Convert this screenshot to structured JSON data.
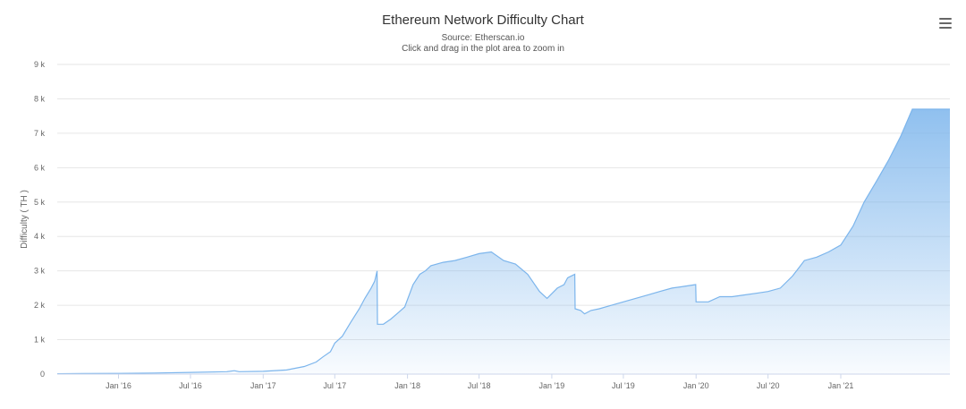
{
  "header": {
    "title": "Ethereum Network Difficulty Chart",
    "source": "Source: Etherscan.io",
    "hint": "Click and drag in the plot area to zoom in"
  },
  "menu": {
    "icon": "hamburger-menu-icon"
  },
  "colors": {
    "series": "#7cb5ec",
    "grid": "#e6e6e6",
    "axis": "#ccd6eb"
  },
  "chart_data": {
    "type": "area",
    "title": "Ethereum Network Difficulty Chart",
    "ylabel": "Difficulty ( TH )",
    "xlabel": "",
    "ylim": [
      0,
      9000
    ],
    "xlim": [
      "2015-07-30",
      "2021-10-04"
    ],
    "y_ticks": [
      {
        "value": 0,
        "label": "0"
      },
      {
        "value": 1000,
        "label": "1 k"
      },
      {
        "value": 2000,
        "label": "2 k"
      },
      {
        "value": 3000,
        "label": "3 k"
      },
      {
        "value": 4000,
        "label": "4 k"
      },
      {
        "value": 5000,
        "label": "5 k"
      },
      {
        "value": 6000,
        "label": "6 k"
      },
      {
        "value": 7000,
        "label": "7 k"
      },
      {
        "value": 8000,
        "label": "8 k"
      },
      {
        "value": 9000,
        "label": "9 k"
      }
    ],
    "x_ticks": [
      {
        "date": "2016-01-01",
        "label": "Jan '16"
      },
      {
        "date": "2016-07-01",
        "label": "Jul '16"
      },
      {
        "date": "2017-01-01",
        "label": "Jan '17"
      },
      {
        "date": "2017-07-01",
        "label": "Jul '17"
      },
      {
        "date": "2018-01-01",
        "label": "Jan '18"
      },
      {
        "date": "2018-07-01",
        "label": "Jul '18"
      },
      {
        "date": "2019-01-01",
        "label": "Jan '19"
      },
      {
        "date": "2019-07-01",
        "label": "Jul '19"
      },
      {
        "date": "2020-01-01",
        "label": "Jan '20"
      },
      {
        "date": "2020-07-01",
        "label": "Jul '20"
      },
      {
        "date": "2021-01-01",
        "label": "Jan '21"
      }
    ],
    "grid": true,
    "legend": "none",
    "series": [
      {
        "x": [
          "2015-07-30",
          "2015-10-01",
          "2016-01-01",
          "2016-04-01",
          "2016-07-01",
          "2016-10-01",
          "2016-10-20",
          "2016-11-01",
          "2017-01-01",
          "2017-03-01",
          "2017-04-15",
          "2017-05-15",
          "2017-06-01",
          "2017-06-20",
          "2017-07-01",
          "2017-07-20",
          "2017-08-10",
          "2017-09-01",
          "2017-09-15",
          "2017-10-01",
          "2017-10-10",
          "2017-10-16",
          "2017-10-17",
          "2017-11-01",
          "2017-11-20",
          "2017-12-10",
          "2017-12-25",
          "2018-01-15",
          "2018-02-01",
          "2018-02-15",
          "2018-03-01",
          "2018-04-01",
          "2018-05-01",
          "2018-06-01",
          "2018-07-01",
          "2018-08-01",
          "2018-09-01",
          "2018-10-01",
          "2018-11-01",
          "2018-12-01",
          "2018-12-20",
          "2019-01-15",
          "2019-02-01",
          "2019-02-10",
          "2019-02-28",
          "2019-03-01",
          "2019-03-15",
          "2019-03-25",
          "2019-04-10",
          "2019-05-01",
          "2019-06-01",
          "2019-07-01",
          "2019-08-01",
          "2019-09-01",
          "2019-10-01",
          "2019-11-01",
          "2019-12-01",
          "2019-12-31",
          "2020-01-01",
          "2020-02-01",
          "2020-03-01",
          "2020-04-01",
          "2020-05-01",
          "2020-06-01",
          "2020-07-01",
          "2020-08-01",
          "2020-09-01",
          "2020-10-01",
          "2020-11-01",
          "2020-12-01",
          "2021-01-01",
          "2021-02-01",
          "2021-03-01",
          "2021-04-01",
          "2021-05-01",
          "2021-06-01",
          "2021-07-01",
          "2021-08-01",
          "2021-09-01",
          "2021-10-04"
        ],
        "y": [
          10,
          15,
          20,
          30,
          50,
          70,
          100,
          70,
          80,
          120,
          220,
          350,
          500,
          650,
          900,
          1100,
          1500,
          1900,
          2200,
          2500,
          2700,
          3000,
          1450,
          1450,
          1600,
          1800,
          1950,
          2600,
          2900,
          3000,
          3150,
          3250,
          3300,
          3400,
          3500,
          3550,
          3300,
          3200,
          2900,
          2400,
          2200,
          2500,
          2600,
          2800,
          2900,
          1900,
          1850,
          1750,
          1850,
          1900,
          2000,
          2100,
          2200,
          2300,
          2400,
          2500,
          2550,
          2600,
          2100,
          2100,
          2250,
          2250,
          2300,
          2350,
          2400,
          2500,
          2850,
          3300,
          3400,
          3550,
          3750,
          4300,
          5000,
          5600,
          6200,
          6900,
          7700,
          7700,
          7700,
          7700
        ],
        "values": "see x/y"
      }
    ]
  }
}
